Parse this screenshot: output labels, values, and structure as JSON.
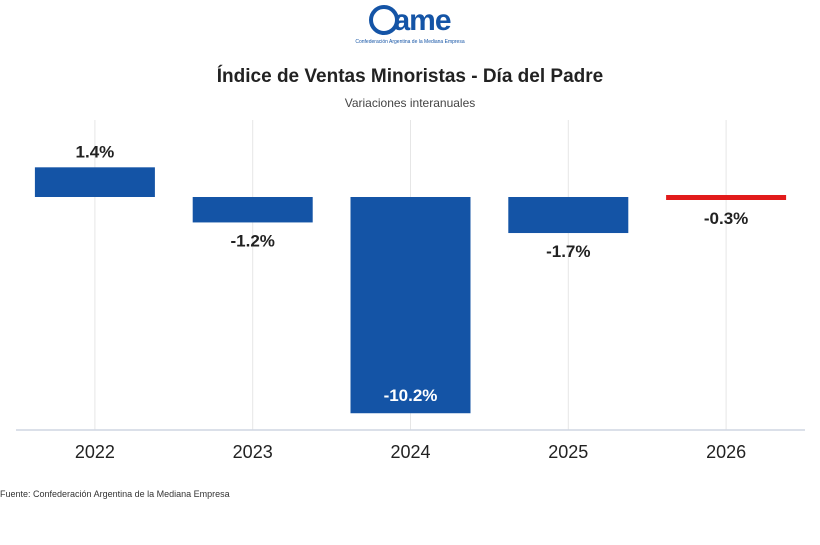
{
  "logo": {
    "text": "ame",
    "subtext": "Confederación Argentina de la Mediana Empresa"
  },
  "colors": {
    "bar": "#1454a6",
    "highlight": "#e21b1b",
    "label_dark": "#222222",
    "label_light": "#ffffff",
    "grid": "#e6e6e6",
    "axis": "#cfd6e2"
  },
  "chart_data": {
    "type": "bar",
    "title": "Índice de Ventas Minoristas - Día del Padre",
    "subtitle": "Variaciones interanuales",
    "categories": [
      "2022",
      "2023",
      "2024",
      "2025",
      "2026"
    ],
    "values": [
      1.4,
      -1.2,
      -10.2,
      -1.7,
      -0.3
    ],
    "data_labels": [
      "1.4%",
      "-1.2%",
      "-10.2%",
      "-1.7%",
      "-0.3%"
    ],
    "highlight_category": "2026",
    "ylim": [
      -11,
      2
    ],
    "grid": "vertical",
    "xlabel": "",
    "ylabel": ""
  },
  "footer": {
    "source": "Fuente: Confederación Argentina de la Mediana Empresa"
  }
}
